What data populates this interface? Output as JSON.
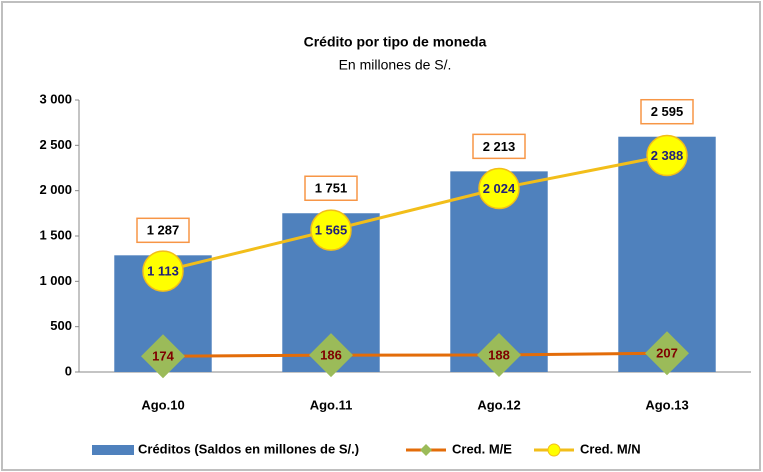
{
  "chart_data": {
    "type": "bar",
    "title": "Crédito por tipo de moneda",
    "subtitle": "En millones de S/.",
    "categories": [
      "Ago.10",
      "Ago.11",
      "Ago.12",
      "Ago.13"
    ],
    "series": [
      {
        "name": "Créditos (Saldos en millones de S/.)",
        "type": "bar",
        "color": "#4f81bd",
        "values": [
          1287,
          1751,
          2213,
          2595
        ],
        "value_labels": [
          "1 287",
          "1 751",
          "2 213",
          "2 595"
        ]
      },
      {
        "name": "Cred. M/E",
        "type": "line",
        "color": "#e36c09",
        "marker": "diamond",
        "marker_color": "#9bbb59",
        "values": [
          174,
          186,
          188,
          207
        ]
      },
      {
        "name": "Cred. M/N",
        "type": "line",
        "color": "#f2be1a",
        "marker": "circle",
        "marker_color": "#ffff00",
        "values": [
          1113,
          1565,
          2024,
          2388
        ],
        "value_labels": [
          "1 113",
          "1 565",
          "2 024",
          "2 388"
        ]
      }
    ],
    "ylim": [
      0,
      3000
    ],
    "yticks": [
      0,
      500,
      {
        "value": 1000,
        "label": "1 000"
      },
      {
        "value": 1500,
        "label": "1 500"
      },
      {
        "value": 2000,
        "label": "2 000"
      },
      {
        "value": 2500,
        "label": "2 500"
      },
      {
        "value": 3000,
        "label": "3 000"
      }
    ],
    "grid": false,
    "legend": "bottom"
  }
}
